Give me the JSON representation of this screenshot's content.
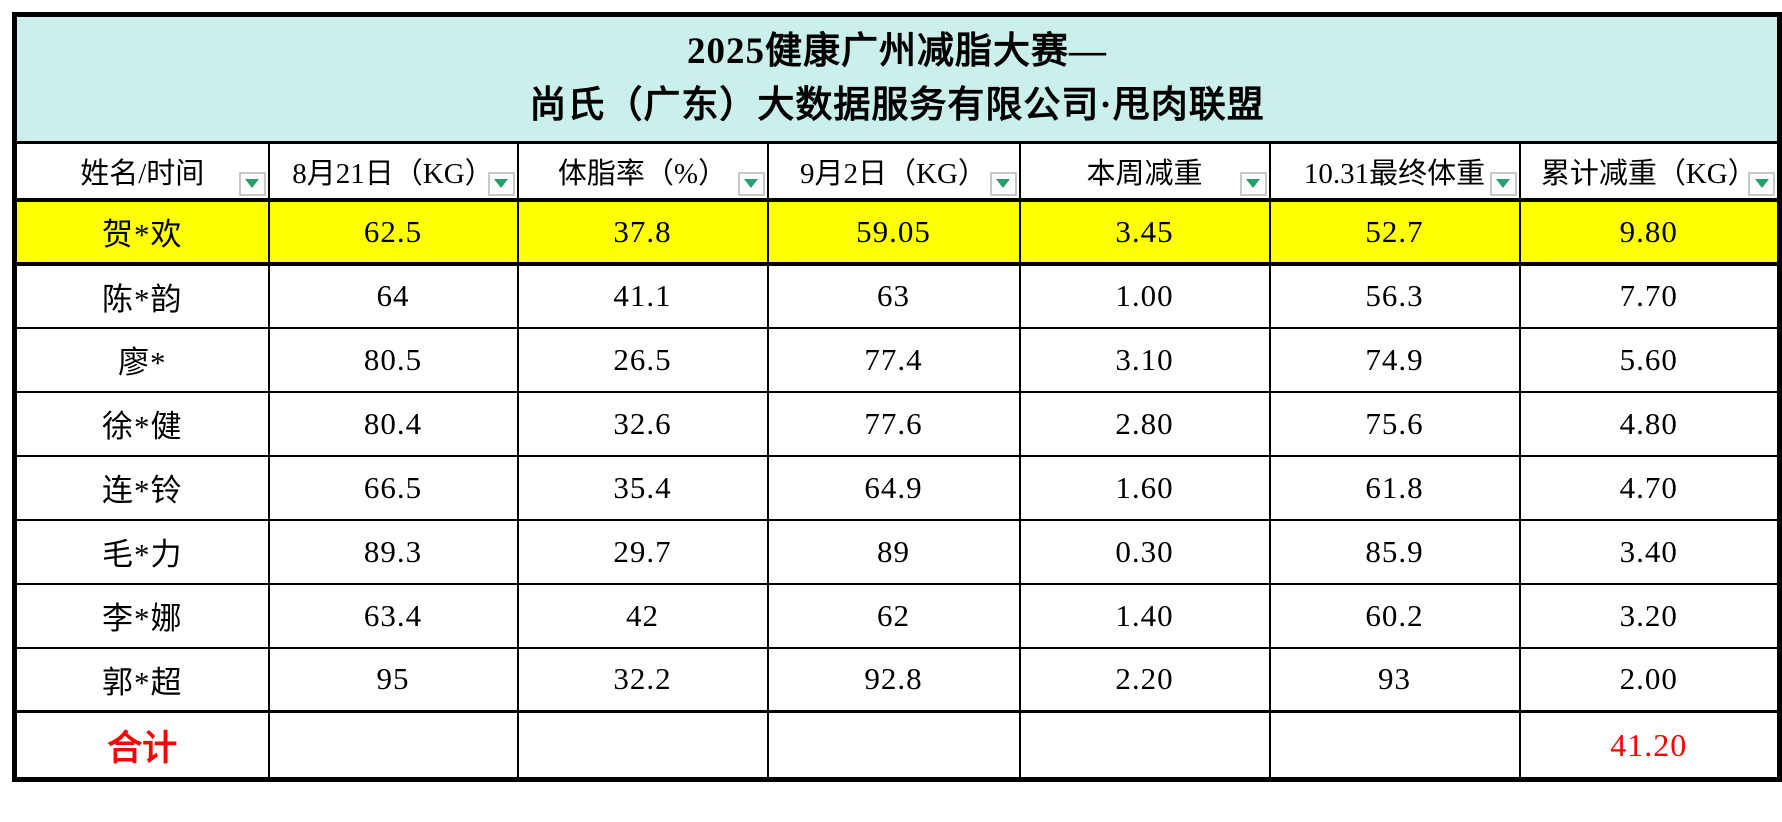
{
  "title": {
    "line1": "2025健康广州减脂大赛—",
    "line2": "尚氏（广东）大数据服务有限公司·甩肉联盟"
  },
  "columns": [
    "姓名/时间",
    "8月21日（KG）",
    "体脂率（%）",
    "9月2日（KG）",
    "本周减重",
    "10.31最终体重",
    "累计减重（KG）"
  ],
  "rows": [
    {
      "name": "贺*欢",
      "cells": [
        "62.5",
        "37.8",
        "59.05",
        "3.45",
        "52.7",
        "9.80"
      ],
      "highlighted": true
    },
    {
      "name": "陈*韵",
      "cells": [
        "64",
        "41.1",
        "63",
        "1.00",
        "56.3",
        "7.70"
      ],
      "highlighted": false
    },
    {
      "name": "廖*",
      "cells": [
        "80.5",
        "26.5",
        "77.4",
        "3.10",
        "74.9",
        "5.60"
      ],
      "highlighted": false
    },
    {
      "name": "徐*健",
      "cells": [
        "80.4",
        "32.6",
        "77.6",
        "2.80",
        "75.6",
        "4.80"
      ],
      "highlighted": false
    },
    {
      "name": "连*铃",
      "cells": [
        "66.5",
        "35.4",
        "64.9",
        "1.60",
        "61.8",
        "4.70"
      ],
      "highlighted": false
    },
    {
      "name": "毛*力",
      "cells": [
        "89.3",
        "29.7",
        "89",
        "0.30",
        "85.9",
        "3.40"
      ],
      "highlighted": false
    },
    {
      "name": "李*娜",
      "cells": [
        "63.4",
        "42",
        "62",
        "1.40",
        "60.2",
        "3.20"
      ],
      "highlighted": false
    },
    {
      "name": "郭*超",
      "cells": [
        "95",
        "32.2",
        "92.8",
        "2.20",
        "93",
        "2.00"
      ],
      "highlighted": false
    }
  ],
  "total_row": {
    "label": "合计",
    "cells": [
      "",
      "",
      "",
      "",
      ""
    ],
    "total_value": "41.20"
  },
  "icons": {
    "filter_dropdown": "chevron-down-icon"
  },
  "colors": {
    "title_background": "#cbf0ec",
    "highlight_row": "#ffff00",
    "total_text": "#fe0000",
    "filter_arrow": "#25a06a",
    "border": "#000000"
  }
}
